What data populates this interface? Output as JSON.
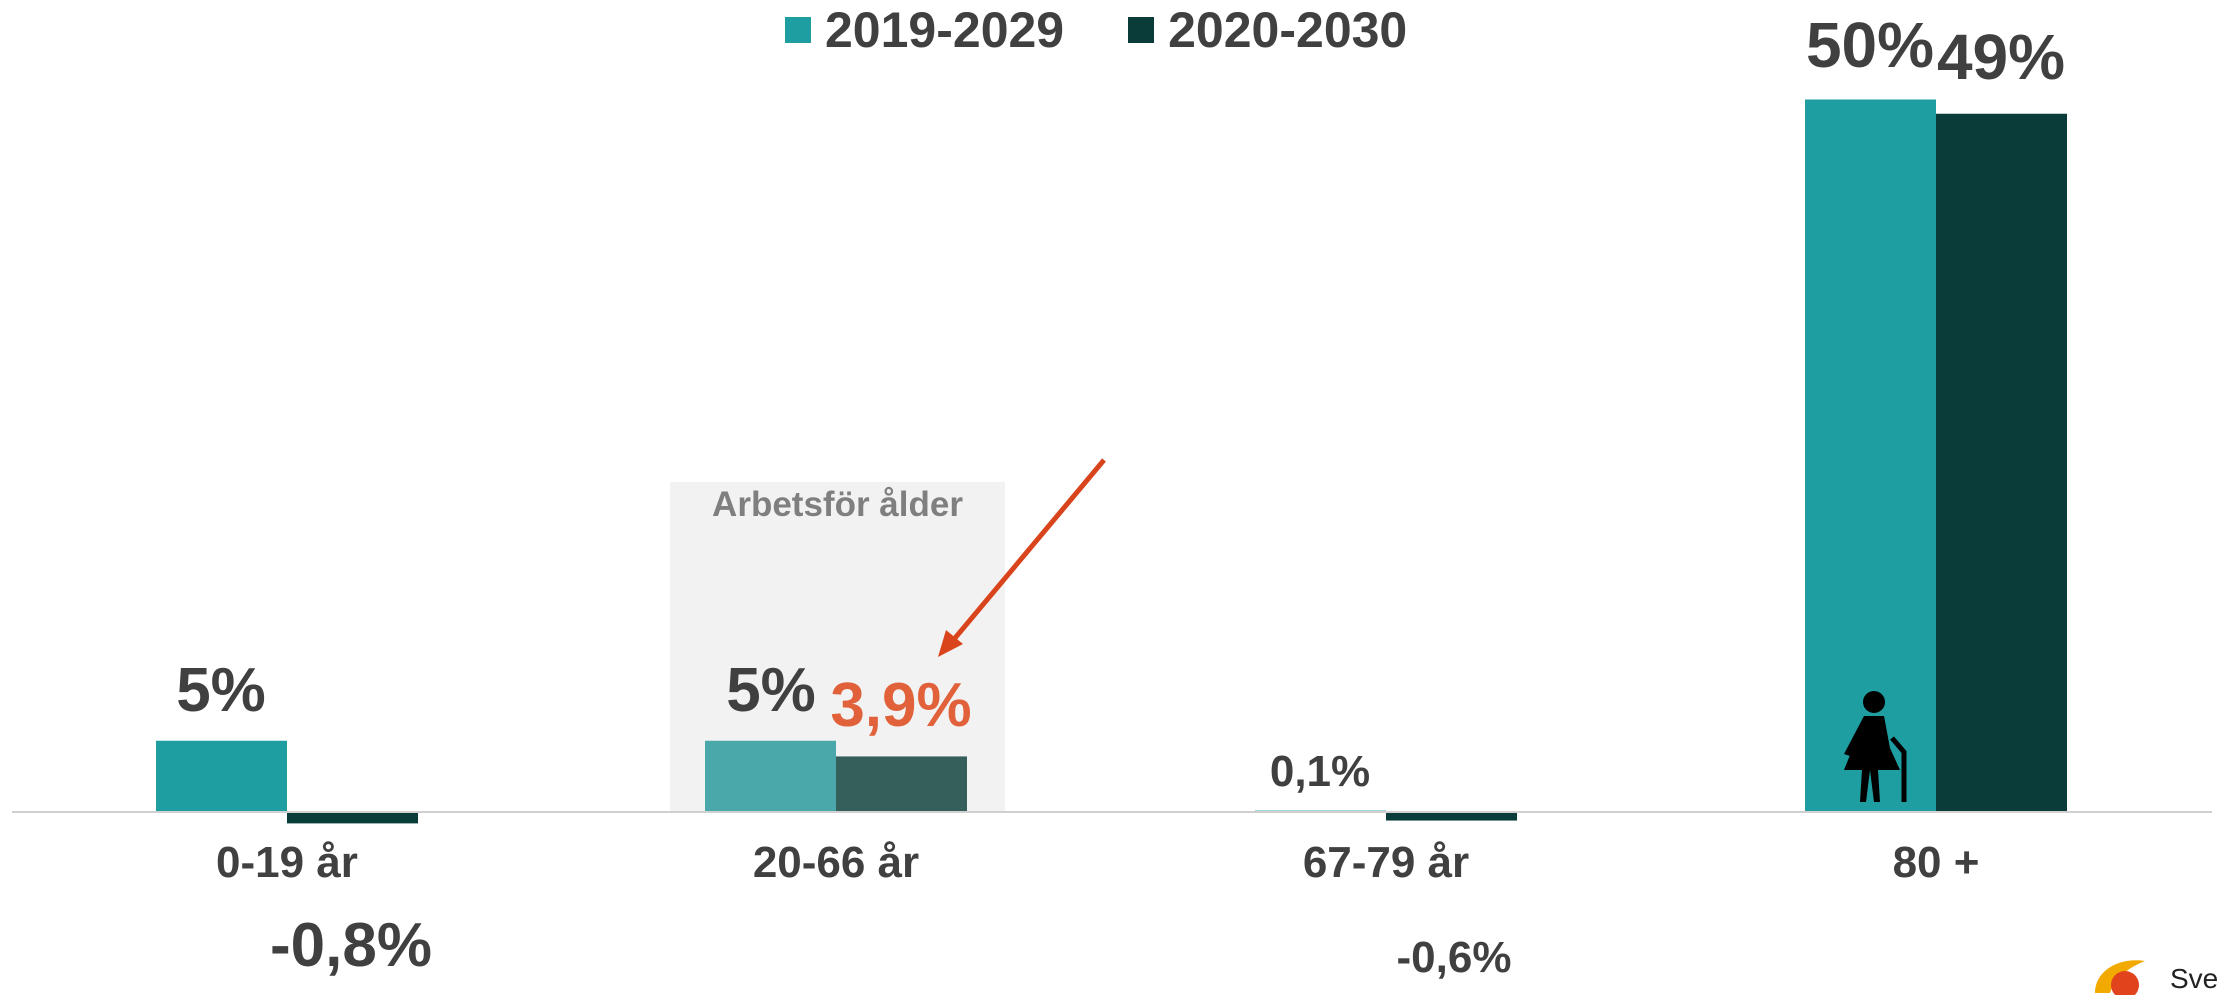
{
  "chart_data": {
    "type": "bar",
    "categories": [
      "0-19 år",
      "20-66 år",
      "67-79 år",
      "80 +"
    ],
    "series": [
      {
        "name": "2019-2029",
        "values": [
          5,
          5,
          0.1,
          50
        ],
        "color": "#1f9ea2"
      },
      {
        "name": "2020-2030",
        "values": [
          -0.8,
          3.9,
          -0.6,
          49
        ],
        "color": "#0a3d3a"
      }
    ],
    "value_labels": {
      "2019-2029": [
        "5%",
        "5%",
        "0,1%",
        "50%"
      ],
      "2020-2030": [
        "-0,8%",
        "3,9%",
        "-0,6%",
        "49%"
      ]
    },
    "highlight": {
      "category": "20-66 år",
      "label": "Arbetsför ålder",
      "emphasis_color": "#e1613b"
    },
    "legend_position": "top-center",
    "grid": false,
    "ylim": [
      -1,
      52
    ]
  },
  "icons": {
    "person": "elderly-person-with-cane-icon",
    "logo": "logo-icon"
  },
  "logo_text": "Sveri"
}
